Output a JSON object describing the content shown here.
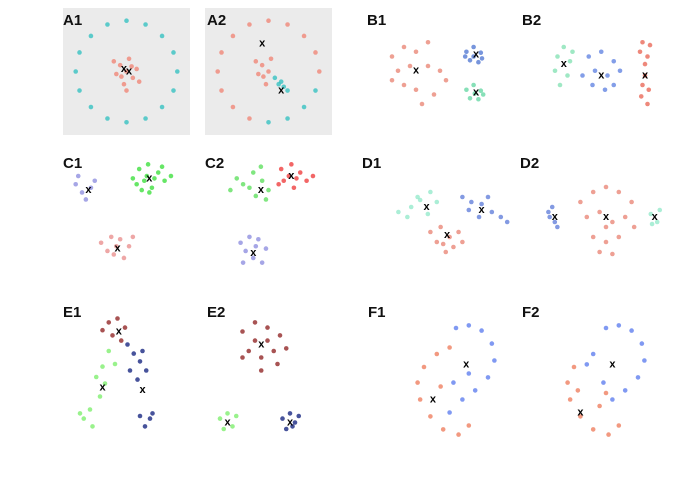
{
  "chart_data": [
    {
      "type": "scatter",
      "title": "A1",
      "background": "#ebebeb",
      "xlim": [
        0,
        100
      ],
      "ylim": [
        0,
        100
      ],
      "series": [
        {
          "color": "#2bbfbf",
          "x": [
            90,
            87,
            78,
            65,
            50,
            35,
            22,
            13,
            10,
            13,
            22,
            35,
            50,
            65,
            78,
            87
          ],
          "y": [
            50,
            65,
            78,
            87,
            90,
            87,
            78,
            65,
            50,
            35,
            22,
            13,
            10,
            13,
            22,
            35
          ]
        },
        {
          "color": "#f08070",
          "x": [
            50,
            45,
            55,
            42,
            58,
            48,
            52,
            40,
            60,
            46,
            54,
            50
          ],
          "y": [
            50,
            55,
            45,
            48,
            52,
            40,
            60,
            58,
            42,
            46,
            54,
            35
          ]
        }
      ],
      "centroids": {
        "marker": "x",
        "x": [
          48,
          52
        ],
        "y": [
          52,
          50
        ]
      }
    },
    {
      "type": "scatter",
      "title": "A2",
      "background": "#ebebeb",
      "xlim": [
        0,
        100
      ],
      "ylim": [
        0,
        100
      ],
      "series": [
        {
          "color": "#f08070",
          "x": [
            90,
            87,
            78,
            65,
            50,
            35,
            22,
            13,
            10,
            13,
            22,
            35,
            50,
            45,
            42,
            48,
            52,
            40,
            46
          ],
          "y": [
            50,
            65,
            78,
            87,
            90,
            87,
            78,
            65,
            50,
            35,
            22,
            13,
            50,
            55,
            48,
            40,
            60,
            58,
            46
          ]
        },
        {
          "color": "#2bbfbf",
          "x": [
            50,
            65,
            78,
            87,
            55,
            58,
            62,
            65,
            60
          ],
          "y": [
            10,
            13,
            22,
            35,
            45,
            40,
            38,
            35,
            42
          ]
        }
      ],
      "centroids": {
        "marker": "x",
        "x": [
          45,
          60
        ],
        "y": [
          72,
          35
        ]
      }
    },
    {
      "type": "scatter",
      "title": "B1",
      "xlim": [
        0,
        100
      ],
      "ylim": [
        0,
        100
      ],
      "series": [
        {
          "color": "#e8806f",
          "x": [
            10,
            20,
            30,
            40,
            15,
            25,
            40,
            50,
            20,
            30,
            45,
            35,
            55,
            10
          ],
          "y": [
            70,
            80,
            75,
            85,
            55,
            60,
            60,
            55,
            40,
            35,
            30,
            20,
            45,
            45
          ]
        },
        {
          "color": "#4a72d0",
          "x": [
            72,
            78,
            84,
            75,
            82,
            78,
            85,
            71
          ],
          "y": [
            75,
            80,
            74,
            66,
            64,
            70,
            68,
            70
          ]
        },
        {
          "color": "#5fd6a0",
          "x": [
            72,
            78,
            84,
            75,
            82,
            79,
            86
          ],
          "y": [
            35,
            40,
            34,
            26,
            25,
            31,
            30
          ]
        }
      ],
      "centroids": {
        "marker": "x",
        "x": [
          30,
          80,
          80
        ],
        "y": [
          55,
          72,
          32
        ]
      }
    },
    {
      "type": "scatter",
      "title": "B2",
      "xlim": [
        0,
        100
      ],
      "ylim": [
        0,
        100
      ],
      "series": [
        {
          "color": "#7fe0b0",
          "x": [
            10,
            15,
            20,
            8,
            18,
            22,
            12
          ],
          "y": [
            70,
            80,
            65,
            55,
            50,
            75,
            40
          ]
        },
        {
          "color": "#5a7ee0",
          "x": [
            35,
            45,
            55,
            40,
            50,
            60,
            38,
            48,
            55,
            30
          ],
          "y": [
            70,
            75,
            65,
            55,
            50,
            55,
            40,
            35,
            40,
            50
          ]
        },
        {
          "color": "#e8604f",
          "x": [
            78,
            84,
            76,
            82,
            80,
            78,
            83,
            77,
            82,
            80
          ],
          "y": [
            85,
            82,
            75,
            70,
            62,
            40,
            35,
            28,
            20,
            50
          ]
        }
      ],
      "centroids": {
        "marker": "x",
        "x": [
          15,
          45,
          80
        ],
        "y": [
          62,
          50,
          50
        ]
      }
    },
    {
      "type": "scatter",
      "title": "C1",
      "xlim": [
        0,
        100
      ],
      "ylim": [
        0,
        100
      ],
      "series": [
        {
          "color": "#8888dd",
          "x": [
            10,
            15,
            22,
            18,
            25,
            12
          ],
          "y": [
            75,
            68,
            72,
            62,
            78,
            82
          ]
        },
        {
          "color": "#33dd33",
          "x": [
            55,
            60,
            67,
            75,
            80,
            70,
            62,
            58,
            72,
            66,
            78,
            64,
            85,
            68
          ],
          "y": [
            80,
            88,
            92,
            85,
            78,
            72,
            70,
            75,
            80,
            82,
            90,
            78,
            82,
            68
          ]
        },
        {
          "color": "#e88a88",
          "x": [
            30,
            38,
            45,
            52,
            40,
            48,
            35,
            55,
            42
          ],
          "y": [
            25,
            30,
            28,
            22,
            15,
            12,
            18,
            30,
            22
          ]
        }
      ],
      "centroids": {
        "marker": "x",
        "x": [
          20,
          68,
          43
        ],
        "y": [
          70,
          80,
          20
        ]
      }
    },
    {
      "type": "scatter",
      "title": "C2",
      "xlim": [
        0,
        100
      ],
      "ylim": [
        0,
        100
      ],
      "series": [
        {
          "color": "#55dd55",
          "x": [
            30,
            38,
            45,
            50,
            40,
            35,
            48,
            25,
            44,
            20
          ],
          "y": [
            75,
            85,
            78,
            70,
            65,
            72,
            62,
            80,
            90,
            70
          ]
        },
        {
          "color": "#ee3333",
          "x": [
            60,
            68,
            75,
            80,
            70,
            62,
            72,
            66,
            85,
            58
          ],
          "y": [
            88,
            92,
            85,
            78,
            72,
            78,
            80,
            82,
            82,
            75
          ]
        },
        {
          "color": "#8888dd",
          "x": [
            28,
            35,
            42,
            48,
            38,
            45,
            32,
            40,
            30
          ],
          "y": [
            25,
            30,
            28,
            20,
            12,
            8,
            18,
            22,
            8
          ]
        }
      ],
      "centroids": {
        "marker": "x",
        "x": [
          44,
          68,
          38
        ],
        "y": [
          70,
          82,
          16
        ]
      }
    },
    {
      "type": "scatter",
      "title": "D1",
      "xlim": [
        0,
        100
      ],
      "ylim": [
        0,
        100
      ],
      "series": [
        {
          "color": "#8fe8c8",
          "x": [
            5,
            15,
            22,
            30,
            35,
            28,
            12,
            20
          ],
          "y": [
            60,
            65,
            72,
            80,
            70,
            58,
            55,
            75
          ]
        },
        {
          "color": "#5a78d8",
          "x": [
            55,
            62,
            70,
            78,
            85,
            68,
            60,
            75,
            90
          ],
          "y": [
            75,
            70,
            68,
            60,
            55,
            55,
            62,
            75,
            50
          ]
        },
        {
          "color": "#e88070",
          "x": [
            30,
            38,
            45,
            52,
            40,
            48,
            35,
            55,
            42
          ],
          "y": [
            40,
            45,
            35,
            40,
            28,
            25,
            30,
            30,
            20
          ]
        }
      ],
      "centroids": {
        "marker": "x",
        "x": [
          27,
          70,
          43
        ],
        "y": [
          65,
          62,
          37
        ]
      }
    },
    {
      "type": "scatter",
      "title": "D2",
      "xlim": [
        0,
        100
      ],
      "ylim": [
        0,
        100
      ],
      "series": [
        {
          "color": "#5a78d8",
          "x": [
            5,
            10,
            8,
            12,
            6
          ],
          "y": [
            60,
            50,
            65,
            45,
            55
          ]
        },
        {
          "color": "#e88070",
          "x": [
            30,
            40,
            50,
            60,
            70,
            35,
            45,
            55,
            65,
            40,
            50,
            60,
            45,
            55,
            50,
            72
          ],
          "y": [
            70,
            80,
            85,
            80,
            70,
            55,
            60,
            50,
            55,
            35,
            30,
            35,
            20,
            18,
            45,
            45
          ]
        },
        {
          "color": "#8fe8c8",
          "x": [
            85,
            90,
            92,
            86
          ],
          "y": [
            58,
            50,
            62,
            48
          ]
        }
      ],
      "centroids": {
        "marker": "x",
        "x": [
          10,
          50,
          88
        ],
        "y": [
          55,
          55,
          55
        ]
      }
    },
    {
      "type": "scatter",
      "title": "E1",
      "xlim": [
        0,
        100
      ],
      "ylim": [
        0,
        100
      ],
      "series": [
        {
          "color": "#8b1a1a",
          "x": [
            35,
            42,
            48,
            38,
            45,
            30
          ],
          "y": [
            92,
            95,
            88,
            82,
            78,
            86
          ]
        },
        {
          "color": "#0a1a7a",
          "x": [
            50,
            55,
            60,
            52,
            58,
            65,
            62,
            60,
            68,
            64,
            70
          ],
          "y": [
            75,
            68,
            62,
            55,
            48,
            55,
            70,
            20,
            18,
            12,
            22
          ]
        },
        {
          "color": "#77ee66",
          "x": [
            35,
            30,
            25,
            32,
            28,
            20,
            15,
            22,
            12,
            40
          ],
          "y": [
            70,
            58,
            50,
            45,
            35,
            25,
            18,
            12,
            22,
            60
          ]
        }
      ],
      "centroids": {
        "marker": "x",
        "x": [
          43,
          62,
          30
        ],
        "y": [
          85,
          40,
          42
        ]
      }
    },
    {
      "type": "scatter",
      "title": "E2",
      "xlim": [
        0,
        100
      ],
      "ylim": [
        0,
        100
      ],
      "series": [
        {
          "color": "#8b1a1a",
          "x": [
            30,
            40,
            50,
            60,
            55,
            45,
            35,
            40,
            50,
            58,
            30,
            45,
            65
          ],
          "y": [
            85,
            92,
            88,
            82,
            70,
            65,
            70,
            78,
            78,
            60,
            65,
            55,
            72
          ]
        },
        {
          "color": "#77ee66",
          "x": [
            12,
            18,
            22,
            15,
            25
          ],
          "y": [
            18,
            22,
            12,
            10,
            20
          ]
        },
        {
          "color": "#0a1a7a",
          "x": [
            62,
            68,
            72,
            65,
            75,
            70
          ],
          "y": [
            18,
            22,
            15,
            10,
            20,
            12
          ]
        }
      ],
      "centroids": {
        "marker": "x",
        "x": [
          45,
          18,
          68
        ],
        "y": [
          75,
          15,
          15
        ]
      }
    },
    {
      "type": "scatter",
      "title": "F1",
      "xlim": [
        0,
        100
      ],
      "ylim": [
        0,
        100
      ],
      "series": [
        {
          "color": "#5577ee",
          "x": [
            50,
            60,
            70,
            78,
            80,
            75,
            65,
            55,
            48,
            60,
            45
          ],
          "y": [
            90,
            92,
            88,
            78,
            65,
            52,
            42,
            35,
            48,
            55,
            25
          ]
        },
        {
          "color": "#ee7755",
          "x": [
            45,
            35,
            25,
            20,
            22,
            30,
            40,
            52,
            60,
            38
          ],
          "y": [
            75,
            70,
            60,
            48,
            35,
            22,
            12,
            8,
            15,
            45
          ]
        }
      ],
      "centroids": {
        "marker": "x",
        "x": [
          58,
          32
        ],
        "y": [
          62,
          35
        ]
      }
    },
    {
      "type": "scatter",
      "title": "F2",
      "xlim": [
        0,
        100
      ],
      "ylim": [
        0,
        100
      ],
      "series": [
        {
          "color": "#5577ee",
          "x": [
            50,
            60,
            70,
            78,
            80,
            75,
            65,
            55,
            48,
            40,
            35
          ],
          "y": [
            90,
            92,
            88,
            78,
            65,
            52,
            42,
            35,
            48,
            70,
            62
          ]
        },
        {
          "color": "#ee7755",
          "x": [
            25,
            20,
            22,
            30,
            40,
            52,
            60,
            45,
            50,
            28
          ],
          "y": [
            60,
            48,
            35,
            22,
            12,
            8,
            15,
            30,
            40,
            42
          ]
        }
      ],
      "centroids": {
        "marker": "x",
        "x": [
          55,
          30
        ],
        "y": [
          62,
          25
        ]
      }
    }
  ]
}
